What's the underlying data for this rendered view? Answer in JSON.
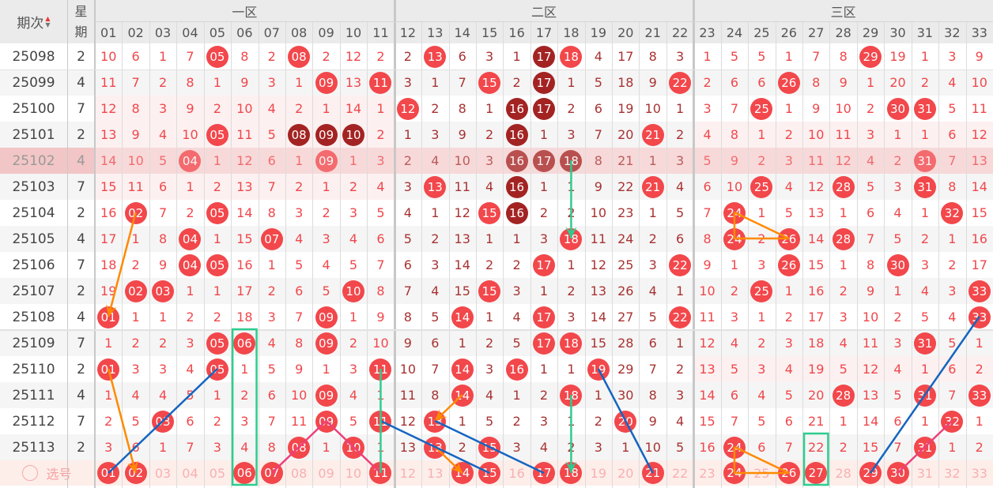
{
  "header": {
    "period_label": "期次",
    "week_label_top": "星",
    "week_label_bottom": "期",
    "zones": [
      "一区",
      "二区",
      "三区"
    ],
    "columns": [
      "01",
      "02",
      "03",
      "04",
      "05",
      "06",
      "07",
      "08",
      "09",
      "10",
      "11",
      "12",
      "13",
      "14",
      "15",
      "16",
      "17",
      "18",
      "19",
      "20",
      "21",
      "22",
      "23",
      "24",
      "25",
      "26",
      "27",
      "28",
      "29",
      "30",
      "31",
      "32",
      "33"
    ]
  },
  "colors": {
    "ball": "#f2474b",
    "ball_dark": "#a32323",
    "text_zone13": "#f0474b",
    "text_zone2": "#a83232",
    "highlight_row": "#f7d9d9",
    "select_row": "#fdeeea"
  },
  "highlighted_period": "25102",
  "rows": [
    {
      "period": "25098",
      "week": "2",
      "cells": [
        "10",
        "6",
        "1",
        "7",
        "05*",
        "8",
        "2",
        "08*",
        "2",
        "12",
        "2",
        "2",
        "13*",
        "6",
        "3",
        "1",
        "17#",
        "18*",
        "4",
        "17",
        "8",
        "3",
        "1",
        "5",
        "5",
        "1",
        "7",
        "8",
        "29*",
        "19",
        "1",
        "3",
        "9"
      ]
    },
    {
      "period": "25099",
      "week": "4",
      "cells": [
        "11",
        "7",
        "2",
        "8",
        "1",
        "9",
        "3",
        "1",
        "09*",
        "13",
        "11*",
        "3",
        "1",
        "7",
        "15*",
        "2",
        "17#",
        "1",
        "5",
        "18",
        "9",
        "22*",
        "2",
        "6",
        "6",
        "26*",
        "8",
        "9",
        "1",
        "20",
        "2",
        "4",
        "10"
      ]
    },
    {
      "period": "25100",
      "week": "7",
      "cells": [
        "12",
        "8",
        "3",
        "9",
        "2",
        "10",
        "4",
        "2",
        "1",
        "14",
        "1",
        "12*",
        "2",
        "8",
        "1",
        "16#",
        "17#",
        "2",
        "6",
        "19",
        "10",
        "1",
        "3",
        "7",
        "25*",
        "1",
        "9",
        "10",
        "2",
        "30*",
        "31*",
        "5",
        "11"
      ]
    },
    {
      "period": "25101",
      "week": "2",
      "cells": [
        "13",
        "9",
        "4",
        "10",
        "05*",
        "11",
        "5",
        "08#",
        "09#",
        "10#",
        "2",
        "1",
        "3",
        "9",
        "2",
        "16#",
        "1",
        "3",
        "7",
        "20",
        "21*",
        "2",
        "4",
        "8",
        "1",
        "2",
        "10",
        "11",
        "3",
        "1",
        "1",
        "6",
        "12"
      ]
    },
    {
      "period": "25102",
      "week": "4",
      "cells": [
        "14",
        "10",
        "5",
        "04*",
        "1",
        "12",
        "6",
        "1",
        "09*",
        "1",
        "3",
        "2",
        "4",
        "10",
        "3",
        "16#",
        "17#",
        "18#",
        "8",
        "21",
        "1",
        "3",
        "5",
        "9",
        "2",
        "3",
        "11",
        "12",
        "4",
        "2",
        "31*",
        "7",
        "13"
      ]
    },
    {
      "period": "25103",
      "week": "7",
      "cells": [
        "15",
        "11",
        "6",
        "1",
        "2",
        "13",
        "7",
        "2",
        "1",
        "2",
        "4",
        "3",
        "13*",
        "11",
        "4",
        "16#",
        "1",
        "1",
        "9",
        "22",
        "21*",
        "4",
        "6",
        "10",
        "25*",
        "4",
        "12",
        "28*",
        "5",
        "3",
        "31*",
        "8",
        "14"
      ]
    },
    {
      "period": "25104",
      "week": "2",
      "cells": [
        "16",
        "02*",
        "7",
        "2",
        "05*",
        "14",
        "8",
        "3",
        "2",
        "3",
        "5",
        "4",
        "1",
        "12",
        "15*",
        "16#",
        "2",
        "2",
        "10",
        "23",
        "1",
        "5",
        "7",
        "24*",
        "1",
        "5",
        "13",
        "1",
        "6",
        "4",
        "1",
        "32*",
        "15"
      ]
    },
    {
      "period": "25105",
      "week": "4",
      "cells": [
        "17",
        "1",
        "8",
        "04*",
        "1",
        "15",
        "07*",
        "4",
        "3",
        "4",
        "6",
        "5",
        "2",
        "13",
        "1",
        "1",
        "3",
        "18*",
        "11",
        "24",
        "2",
        "6",
        "8",
        "24*",
        "2",
        "26*",
        "14",
        "28*",
        "7",
        "5",
        "2",
        "1",
        "16"
      ]
    },
    {
      "period": "25106",
      "week": "7",
      "cells": [
        "18",
        "2",
        "9",
        "04*",
        "05*",
        "16",
        "1",
        "5",
        "4",
        "5",
        "7",
        "6",
        "3",
        "14",
        "2",
        "2",
        "17*",
        "1",
        "12",
        "25",
        "3",
        "22*",
        "9",
        "1",
        "3",
        "26*",
        "15",
        "1",
        "8",
        "30*",
        "3",
        "2",
        "17"
      ]
    },
    {
      "period": "25107",
      "week": "2",
      "cells": [
        "19",
        "02*",
        "03*",
        "1",
        "1",
        "17",
        "2",
        "6",
        "5",
        "10*",
        "8",
        "7",
        "4",
        "15",
        "15*",
        "3",
        "1",
        "2",
        "13",
        "26",
        "4",
        "1",
        "10",
        "2",
        "25*",
        "1",
        "16",
        "2",
        "9",
        "1",
        "4",
        "3",
        "33*"
      ]
    },
    {
      "period": "25108",
      "week": "4",
      "cells": [
        "01*",
        "1",
        "1",
        "2",
        "2",
        "18",
        "3",
        "7",
        "09*",
        "1",
        "9",
        "8",
        "5",
        "14*",
        "1",
        "4",
        "17*",
        "3",
        "14",
        "27",
        "5",
        "22*",
        "11",
        "3",
        "1",
        "2",
        "17",
        "3",
        "10",
        "2",
        "5",
        "4",
        "33*"
      ]
    },
    {
      "period": "25109",
      "week": "7",
      "cells": [
        "1",
        "2",
        "2",
        "3",
        "05*",
        "06*",
        "4",
        "8",
        "09*",
        "2",
        "10",
        "9",
        "6",
        "1",
        "2",
        "5",
        "17*",
        "18*",
        "15",
        "28",
        "6",
        "1",
        "12",
        "4",
        "2",
        "3",
        "18",
        "4",
        "11",
        "3",
        "31*",
        "5",
        "1"
      ]
    },
    {
      "period": "25110",
      "week": "2",
      "cells": [
        "01*",
        "3",
        "3",
        "4",
        "05*",
        "1",
        "5",
        "9",
        "1",
        "3",
        "11*",
        "10",
        "7",
        "14*",
        "3",
        "16*",
        "1",
        "1",
        "19*",
        "29",
        "7",
        "2",
        "13",
        "5",
        "3",
        "4",
        "19",
        "5",
        "12",
        "4",
        "1",
        "6",
        "2"
      ]
    },
    {
      "period": "25111",
      "week": "4",
      "cells": [
        "1",
        "4",
        "4",
        "5",
        "1",
        "2",
        "6",
        "10",
        "09*",
        "4",
        "1",
        "11",
        "8",
        "14*",
        "4",
        "1",
        "2",
        "18*",
        "1",
        "30",
        "8",
        "3",
        "14",
        "6",
        "4",
        "5",
        "20",
        "28*",
        "13",
        "5",
        "31*",
        "7",
        "33*"
      ]
    },
    {
      "period": "25112",
      "week": "7",
      "cells": [
        "2",
        "5",
        "03*",
        "6",
        "2",
        "3",
        "7",
        "11",
        "09*",
        "5",
        "11*",
        "12",
        "13*",
        "1",
        "5",
        "2",
        "3",
        "1",
        "2",
        "20*",
        "9",
        "4",
        "15",
        "7",
        "5",
        "6",
        "21",
        "1",
        "14",
        "6",
        "1",
        "32*",
        "1"
      ]
    },
    {
      "period": "25113",
      "week": "2",
      "cells": [
        "3",
        "6",
        "1",
        "7",
        "3",
        "4",
        "8",
        "08*",
        "1",
        "10*",
        "1",
        "13",
        "13*",
        "2",
        "15*",
        "3",
        "4",
        "2",
        "3",
        "1",
        "10",
        "5",
        "16",
        "24*",
        "6",
        "7",
        "22",
        "2",
        "15",
        "7",
        "31*",
        "1",
        "2"
      ]
    }
  ],
  "select_row": {
    "label": "选号",
    "selected": [
      "01",
      "02",
      "06",
      "07",
      "11",
      "14",
      "15",
      "17",
      "18",
      "21",
      "24",
      "26",
      "27",
      "29",
      "30"
    ]
  },
  "annotations": {
    "orange_arrows": [
      [
        "25104",
        "02",
        "25108",
        "01"
      ],
      [
        "25110",
        "01",
        "select",
        "02"
      ],
      [
        "25111",
        "14",
        "25112",
        "13"
      ],
      [
        "25113",
        "13",
        "select",
        "14"
      ]
    ],
    "orange_polylines": [
      [
        [
          "25104",
          "24"
        ],
        [
          "25105",
          "24"
        ],
        [
          "25105",
          "26"
        ],
        [
          "25104",
          "24"
        ]
      ],
      [
        [
          "25113",
          "24"
        ],
        [
          "select",
          "24"
        ],
        [
          "select",
          "26"
        ],
        [
          "25113",
          "24"
        ]
      ]
    ],
    "blue_lines": [
      [
        "select",
        "01",
        "25110",
        "05"
      ],
      [
        "25112",
        "11",
        "select",
        "15"
      ],
      [
        "25112",
        "13",
        "select",
        "17"
      ],
      [
        "25110",
        "19",
        "select",
        "21"
      ],
      [
        "select",
        "29",
        "25108",
        "33"
      ]
    ],
    "pink_polylines": [
      [
        [
          "select",
          "07"
        ],
        [
          "25112",
          "09"
        ],
        [
          "select",
          "11"
        ]
      ],
      [
        [
          "select",
          "30"
        ],
        [
          "25112",
          "32"
        ]
      ]
    ],
    "green_lines": [
      [
        "25110",
        "11",
        "select",
        "11"
      ]
    ],
    "green_arrows": [
      [
        "25102",
        "18",
        "25105",
        "18"
      ],
      [
        "25111",
        "18",
        "select",
        "18"
      ]
    ],
    "green_boxes": [
      [
        "25109",
        "select",
        "06"
      ],
      [
        "25113",
        "select",
        "27"
      ]
    ]
  }
}
